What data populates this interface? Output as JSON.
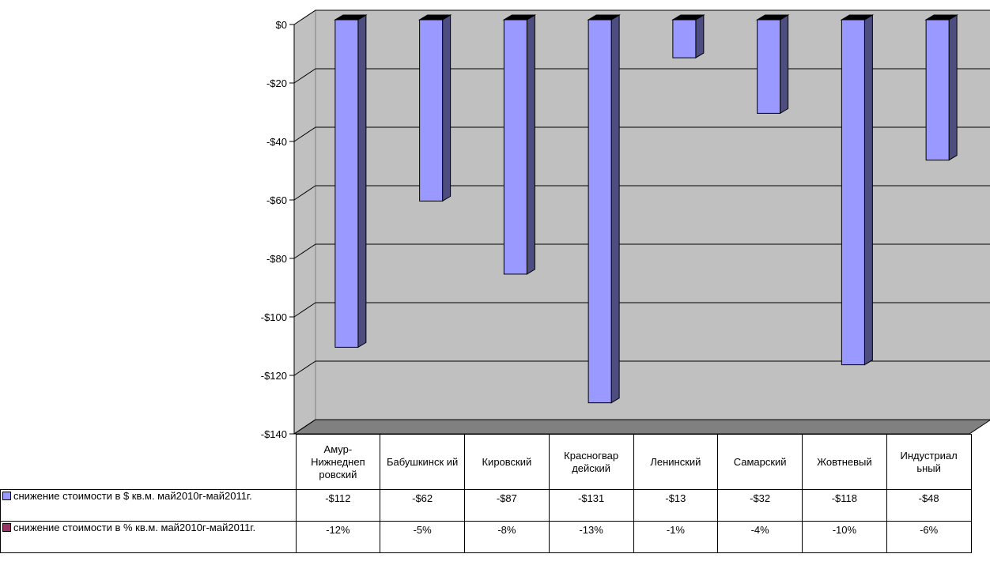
{
  "chart_data": {
    "type": "bar",
    "categories": [
      "Амур-Нижнеднеп ровский",
      "Бабушкинск ий",
      "Кировский",
      "Красногвар дейский",
      "Ленинский",
      "Самарский",
      "Жовтневый",
      "Индустриал ьный"
    ],
    "series": [
      {
        "name": "снижение стоимости в $ кв.м. май2010г-май2011г.",
        "values": [
          -112,
          -62,
          -87,
          -131,
          -13,
          -32,
          -118,
          -48
        ],
        "labels": [
          "-$112",
          "-$62",
          "-$87",
          "-$131",
          "-$13",
          "-$32",
          "-$118",
          "-$48"
        ],
        "color": "#9999ff"
      },
      {
        "name": "снижение стоимости в % кв.м. май2010г-май2011г.",
        "values": [
          -12,
          -5,
          -8,
          -13,
          -1,
          -4,
          -10,
          -6
        ],
        "labels": [
          "-12%",
          "-5%",
          "-8%",
          "-13%",
          "-1%",
          "-4%",
          "-10%",
          "-6%"
        ],
        "color": "#993366"
      }
    ],
    "ylim": [
      -140,
      0
    ],
    "ytick_values": [
      0,
      -20,
      -40,
      -60,
      -80,
      -100,
      -120,
      -140
    ],
    "ytick_labels": [
      "$0",
      "-$20",
      "-$40",
      "-$60",
      "-$80",
      "-$100",
      "-$120",
      "-$140"
    ],
    "grid": true,
    "legend": "data-table",
    "title": "",
    "xlabel": "",
    "ylabel": ""
  },
  "colors": {
    "wall": "#c0c0c0",
    "floor": "#808080",
    "bar_front": "#9999ff",
    "bar_side": "#4d4d80",
    "bar_top": "#000000"
  }
}
